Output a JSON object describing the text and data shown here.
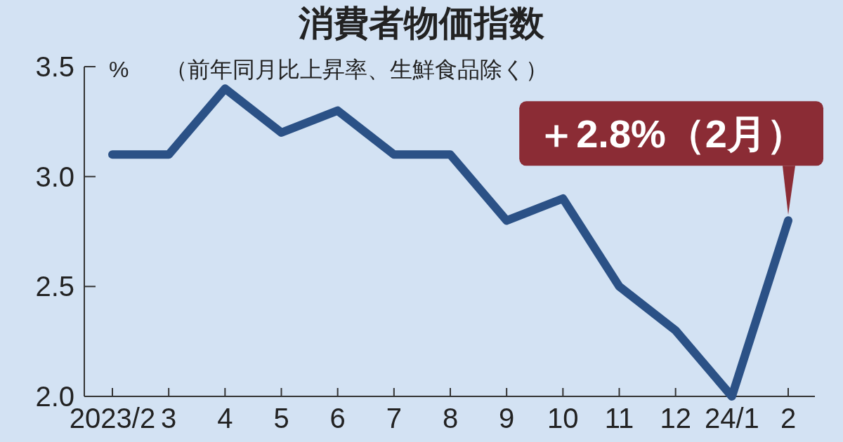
{
  "chart_data": {
    "type": "line",
    "title": "消費者物価指数",
    "subtitle": "（前年同月比上昇率、生鮮食品除く）",
    "ylabel": "%",
    "categories": [
      "2023/2",
      "3",
      "4",
      "5",
      "6",
      "7",
      "8",
      "9",
      "10",
      "11",
      "12",
      "24/1",
      "2"
    ],
    "series": [
      {
        "color": "#2b5186",
        "values": [
          3.1,
          3.1,
          3.4,
          3.2,
          3.3,
          3.1,
          3.1,
          2.8,
          2.9,
          2.5,
          2.3,
          2.0,
          2.8
        ]
      }
    ],
    "ylim": [
      2,
      3.5
    ],
    "yticks": [
      {
        "value": 2,
        "label": "2.0"
      },
      {
        "value": 2.5,
        "label": "2.5"
      },
      {
        "value": 3,
        "label": "3.0"
      },
      {
        "value": 3.5,
        "label": "3.5"
      }
    ],
    "annotations": [
      {
        "text": "＋2.8%（2月）",
        "x": "2",
        "y": 2.8
      }
    ]
  }
}
